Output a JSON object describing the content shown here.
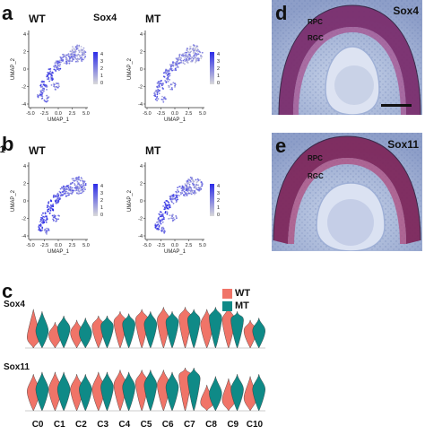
{
  "panel_labels": {
    "a": "a",
    "b": "b",
    "c": "c",
    "d": "d",
    "e": "e"
  },
  "umap_rows": [
    {
      "gene": "Sox4",
      "plots": [
        {
          "condition": "WT",
          "show_gene": false
        },
        {
          "condition": "MT",
          "show_gene": true
        }
      ]
    },
    {
      "gene": "Sox11",
      "plots": [
        {
          "condition": "WT",
          "show_gene": true
        },
        {
          "condition": "MT",
          "show_gene": false
        }
      ]
    }
  ],
  "umap_axes": {
    "xlabel": "UMAP_1",
    "ylabel": "UMAP_2",
    "x_ticks": [
      "-5.0",
      "-2.5",
      "0.0",
      "2.5",
      "5.0"
    ],
    "y_ticks": [
      "4",
      "2",
      "0",
      "-2",
      "-4"
    ]
  },
  "colorbar": {
    "ticks": [
      "4",
      "3",
      "2",
      "1",
      "0"
    ],
    "low_color": "#d9d9d9",
    "high_color": "#2b2be8"
  },
  "micrographs": [
    {
      "gene": "Sox4",
      "labels": [
        "RPC",
        "RGC"
      ],
      "has_scale_bar": true
    },
    {
      "gene": "Sox11",
      "labels": [
        "RPC",
        "RGC"
      ],
      "has_scale_bar": false
    }
  ],
  "legend": {
    "entries": [
      {
        "label": "WT",
        "color": "#f07468"
      },
      {
        "label": "MT",
        "color": "#0f8a87"
      }
    ]
  },
  "chart_data": {
    "type": "violin",
    "categories": [
      "C0",
      "C1",
      "C2",
      "C3",
      "C4",
      "C5",
      "C6",
      "C7",
      "C8",
      "C9",
      "C10"
    ],
    "genes": [
      {
        "name": "Sox4",
        "series": [
          {
            "name": "WT",
            "center": [
              0.25,
              0.3,
              0.35,
              0.5,
              0.6,
              0.65,
              0.65,
              0.7,
              0.55,
              0.65,
              0.4
            ],
            "top": [
              0.9,
              0.6,
              0.65,
              0.75,
              0.85,
              0.9,
              0.95,
              0.95,
              0.9,
              0.95,
              0.65
            ]
          },
          {
            "name": "MT",
            "center": [
              0.4,
              0.45,
              0.35,
              0.5,
              0.55,
              0.55,
              0.6,
              0.65,
              0.7,
              0.65,
              0.4
            ],
            "top": [
              0.85,
              0.75,
              0.7,
              0.75,
              0.8,
              0.85,
              0.85,
              0.9,
              0.95,
              0.85,
              0.7
            ]
          }
        ]
      },
      {
        "name": "Sox11",
        "series": [
          {
            "name": "WT",
            "center": [
              0.45,
              0.5,
              0.5,
              0.5,
              0.6,
              0.65,
              0.6,
              0.8,
              0.2,
              0.25,
              0.3
            ],
            "top": [
              0.85,
              0.9,
              0.85,
              0.9,
              0.95,
              0.95,
              0.95,
              1.0,
              0.6,
              0.75,
              0.8
            ]
          },
          {
            "name": "MT",
            "center": [
              0.5,
              0.5,
              0.5,
              0.55,
              0.55,
              0.6,
              0.55,
              0.75,
              0.4,
              0.5,
              0.5
            ],
            "top": [
              0.9,
              0.9,
              0.85,
              0.9,
              0.9,
              0.95,
              0.9,
              1.0,
              0.8,
              0.85,
              0.85
            ]
          }
        ]
      }
    ]
  }
}
